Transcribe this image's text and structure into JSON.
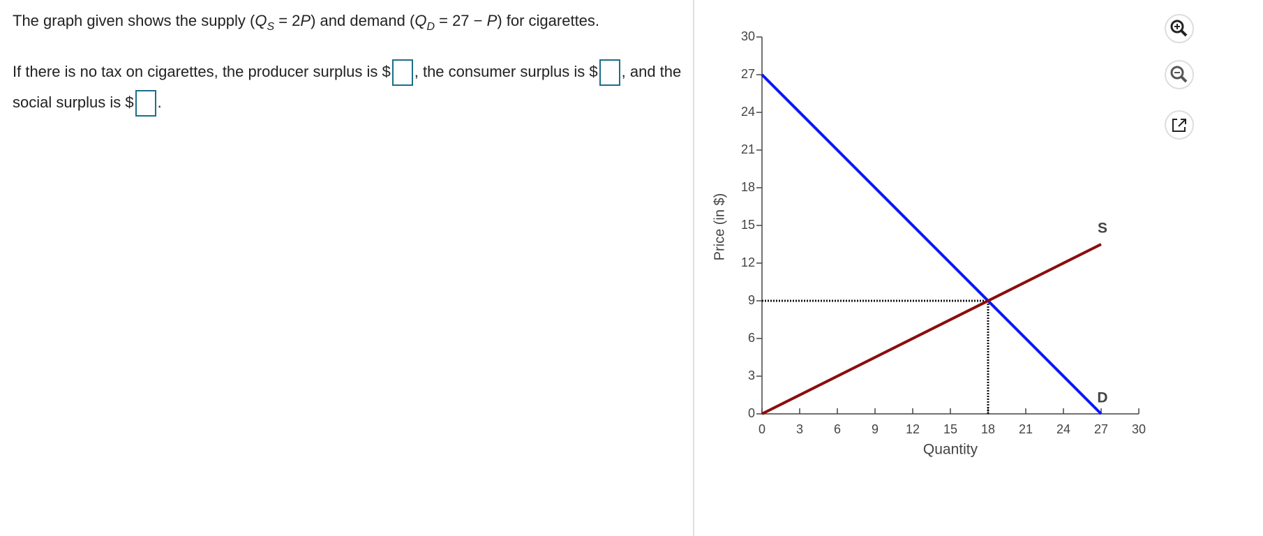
{
  "question": {
    "intro": [
      "The graph given shows the supply (",
      "Q",
      "S",
      " = 2",
      "P",
      ") and demand (",
      "Q",
      "D",
      " = 27 − ",
      "P",
      ") for cigarettes."
    ],
    "prompt": [
      "If there is no tax on cigarettes, the producer surplus is $",
      ", the consumer surplus is $",
      ", and the social surplus is $",
      "."
    ]
  },
  "chart_data": {
    "type": "line",
    "x_label": "Quantity",
    "y_label": "Price (in $)",
    "xlim": [
      0,
      30
    ],
    "ylim": [
      0,
      30
    ],
    "xticks": [
      0,
      3,
      6,
      9,
      12,
      15,
      18,
      21,
      24,
      27,
      30
    ],
    "yticks": [
      0,
      3,
      6,
      9,
      12,
      15,
      18,
      21,
      24,
      27,
      30
    ],
    "series": [
      {
        "name": "D",
        "color": "#0a19f5",
        "x": [
          0,
          27
        ],
        "values": [
          27,
          0
        ]
      },
      {
        "name": "S",
        "color": "#8b0d0d",
        "x": [
          0,
          27
        ],
        "values": [
          0,
          13.5
        ]
      }
    ],
    "equilibrium": {
      "x": 18,
      "y": 9
    }
  }
}
